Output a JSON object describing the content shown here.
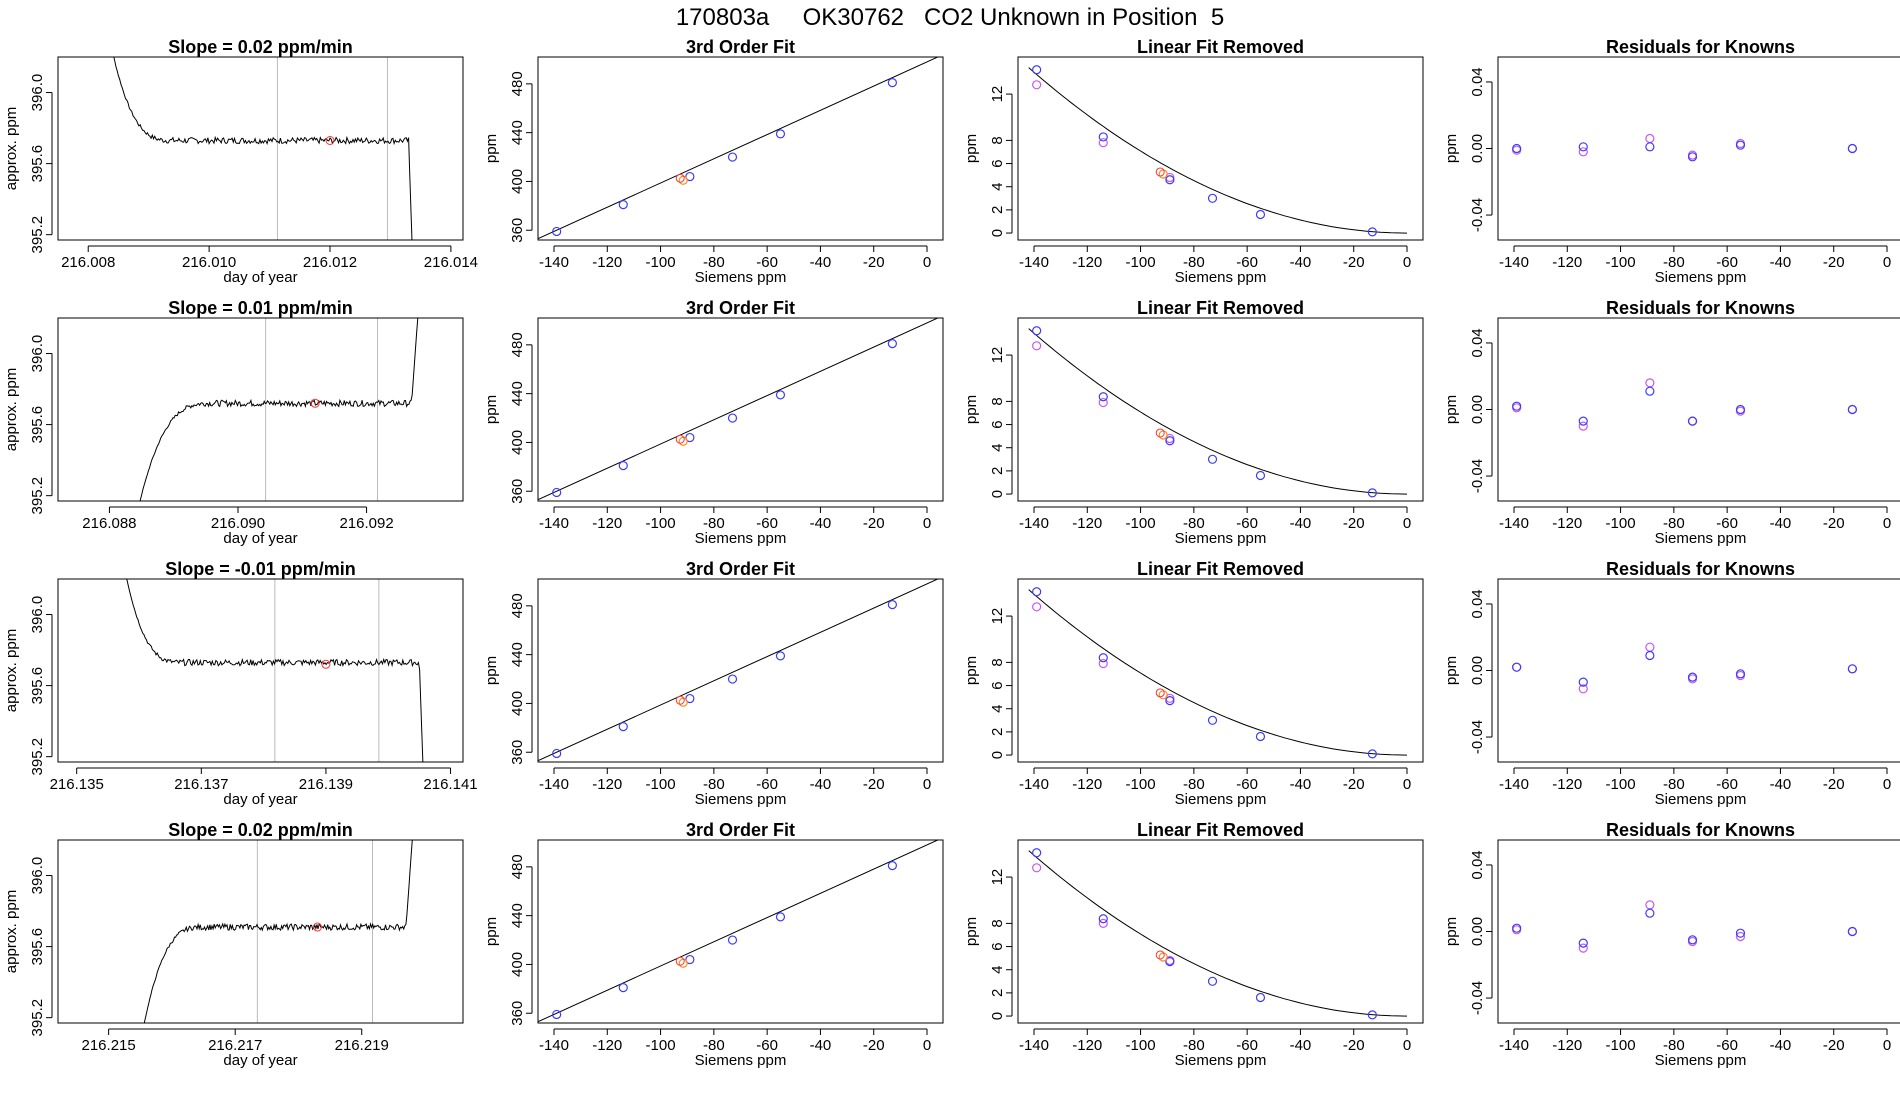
{
  "figure": {
    "title": "170803a     OK30762   CO2 Unknown in Position  5"
  },
  "colors": {
    "axis": "#000000",
    "trace": "#000000",
    "marker_red": "#ff3030",
    "marker_blue": "#3b3bff",
    "marker_violet": "#cc55ee",
    "marker_orange": "#ff8c1a",
    "vline": "#bbbbbb"
  },
  "chart_data": [
    {
      "type": "line",
      "row": 0,
      "title": "Slope =  0.02  ppm/min",
      "xlabel": "day of year",
      "ylabel": "approx. ppm",
      "xlim": [
        216.0075,
        216.0142
      ],
      "ylim": [
        395.17,
        396.2
      ],
      "xticks": [
        "216.008",
        "216.010",
        "216.012",
        "216.014"
      ],
      "yticks": [
        "395.2",
        "395.6",
        "396.0"
      ],
      "shape": "fall",
      "x_start": 216.0082,
      "x_plateau": 216.0094,
      "x_end": 216.0133,
      "x_drop_end": 216.0134,
      "level": 395.73,
      "vlines": [
        216.01113,
        216.01295
      ],
      "marker": [
        216.012,
        395.73
      ]
    },
    {
      "type": "scatter",
      "row": 0,
      "title": "3rd Order Fit",
      "xlabel": "Siemens ppm",
      "ylabel": "ppm",
      "xlim": [
        -146,
        6
      ],
      "ylim": [
        352,
        502
      ],
      "xticks": [
        "-140",
        "-120",
        "-100",
        "-80",
        "-60",
        "-40",
        "-20",
        "0"
      ],
      "yticks": [
        "360",
        "400",
        "440",
        "480"
      ],
      "curve": [
        [
          -140,
          359
        ],
        [
          0,
          498
        ]
      ],
      "knowns": [
        [
          -139,
          359
        ],
        [
          -114,
          381
        ],
        [
          -89,
          404
        ],
        [
          -73,
          420
        ],
        [
          -55,
          439
        ],
        [
          -13,
          481
        ]
      ],
      "unknown": [
        [
          -91.5,
          401
        ]
      ]
    },
    {
      "type": "scatter",
      "row": 0,
      "title": "Linear Fit Removed",
      "xlabel": "Siemens ppm",
      "ylabel": "ppm",
      "xlim": [
        -146,
        6
      ],
      "ylim": [
        -0.6,
        15.2
      ],
      "xticks": [
        "-140",
        "-120",
        "-100",
        "-80",
        "-60",
        "-40",
        "-20",
        "0"
      ],
      "yticks": [
        "0",
        "2",
        "4",
        "6",
        "8",
        "12"
      ],
      "curve_poly": {
        "x0": 0,
        "a": 0.00071,
        "b": 0.0002
      },
      "knowns": [
        [
          -139,
          14.1
        ],
        [
          -114,
          8.3
        ],
        [
          -89,
          4.6
        ],
        [
          -73,
          3.0
        ],
        [
          -55,
          1.6
        ],
        [
          -13,
          0.1
        ]
      ],
      "knowns_alt": [
        [
          -139,
          12.8
        ],
        [
          -114,
          7.8
        ],
        [
          -89,
          4.8
        ]
      ],
      "unknown": [
        [
          -91.5,
          5.1
        ]
      ]
    },
    {
      "type": "scatter",
      "row": 0,
      "title": "Residuals for Knowns",
      "xlabel": "Siemens ppm",
      "ylabel": "ppm",
      "xlim": [
        -146,
        6
      ],
      "ylim": [
        -0.055,
        0.055
      ],
      "xticks": [
        "-140",
        "-120",
        "-100",
        "-80",
        "-60",
        "-40",
        "-20",
        "0"
      ],
      "yticks": [
        "-0.04",
        "0.00",
        "0.04"
      ],
      "knowns": [
        [
          -139,
          0.0
        ],
        [
          -114,
          0.001
        ],
        [
          -89,
          0.001
        ],
        [
          -73,
          -0.005
        ],
        [
          -55,
          0.002
        ],
        [
          -13,
          0.0
        ]
      ],
      "knowns_alt": [
        [
          -139,
          -0.001
        ],
        [
          -114,
          -0.002
        ],
        [
          -89,
          0.006
        ],
        [
          -73,
          -0.004
        ],
        [
          -55,
          0.003
        ],
        [
          -13,
          0.0
        ]
      ]
    },
    {
      "type": "line",
      "row": 1,
      "title": "Slope =  0.01  ppm/min",
      "xlabel": "day of year",
      "ylabel": "approx. ppm",
      "xlim": [
        216.0872,
        216.0935
      ],
      "ylim": [
        395.17,
        396.2
      ],
      "xticks": [
        "216.088",
        "216.090",
        "216.092"
      ],
      "yticks": [
        "395.2",
        "395.6",
        "396.0"
      ],
      "shape": "rise",
      "x_start": 216.0884,
      "x_plateau": 216.0896,
      "x_end": 216.0927,
      "x_drop_end": 216.0929,
      "level": 395.72,
      "vlines": [
        216.09043,
        216.09217
      ],
      "marker": [
        216.0912,
        395.72
      ]
    },
    {
      "type": "scatter",
      "row": 1,
      "title": "3rd Order Fit",
      "xlabel": "Siemens ppm",
      "ylabel": "ppm",
      "xlim": [
        -146,
        6
      ],
      "ylim": [
        352,
        502
      ],
      "xticks": [
        "-140",
        "-120",
        "-100",
        "-80",
        "-60",
        "-40",
        "-20",
        "0"
      ],
      "yticks": [
        "360",
        "400",
        "440",
        "480"
      ],
      "curve": [
        [
          -140,
          359
        ],
        [
          0,
          498
        ]
      ],
      "knowns": [
        [
          -139,
          359
        ],
        [
          -114,
          381
        ],
        [
          -89,
          404
        ],
        [
          -73,
          420
        ],
        [
          -55,
          439
        ],
        [
          -13,
          481
        ]
      ],
      "unknown": [
        [
          -91.5,
          401
        ]
      ]
    },
    {
      "type": "scatter",
      "row": 1,
      "title": "Linear Fit Removed",
      "xlabel": "Siemens ppm",
      "ylabel": "ppm",
      "xlim": [
        -146,
        6
      ],
      "ylim": [
        -0.6,
        15.2
      ],
      "xticks": [
        "-140",
        "-120",
        "-100",
        "-80",
        "-60",
        "-40",
        "-20",
        "0"
      ],
      "yticks": [
        "0",
        "2",
        "4",
        "6",
        "8",
        "12"
      ],
      "curve_poly": {
        "x0": 0,
        "a": 0.00071,
        "b": 0.0002
      },
      "knowns": [
        [
          -139,
          14.1
        ],
        [
          -114,
          8.4
        ],
        [
          -89,
          4.6
        ],
        [
          -73,
          3.0
        ],
        [
          -55,
          1.6
        ],
        [
          -13,
          0.1
        ]
      ],
      "knowns_alt": [
        [
          -139,
          12.8
        ],
        [
          -114,
          7.9
        ],
        [
          -89,
          4.8
        ]
      ],
      "unknown": [
        [
          -91.5,
          5.1
        ]
      ]
    },
    {
      "type": "scatter",
      "row": 1,
      "title": "Residuals for Knowns",
      "xlabel": "Siemens ppm",
      "ylabel": "ppm",
      "xlim": [
        -146,
        6
      ],
      "ylim": [
        -0.055,
        0.055
      ],
      "xticks": [
        "-140",
        "-120",
        "-100",
        "-80",
        "-60",
        "-40",
        "-20",
        "0"
      ],
      "yticks": [
        "-0.04",
        "0.00",
        "0.04"
      ],
      "knowns": [
        [
          -139,
          0.002
        ],
        [
          -114,
          -0.007
        ],
        [
          -89,
          0.011
        ],
        [
          -73,
          -0.007
        ],
        [
          -55,
          0.0
        ],
        [
          -13,
          0.0
        ]
      ],
      "knowns_alt": [
        [
          -139,
          0.001
        ],
        [
          -114,
          -0.01
        ],
        [
          -89,
          0.016
        ],
        [
          -73,
          -0.007
        ],
        [
          -55,
          -0.001
        ],
        [
          -13,
          0.0
        ]
      ]
    },
    {
      "type": "line",
      "row": 2,
      "title": "Slope =  -0.01  ppm/min",
      "xlabel": "day of year",
      "ylabel": "approx. ppm",
      "xlim": [
        216.1347,
        216.1412
      ],
      "ylim": [
        395.17,
        396.2
      ],
      "xticks": [
        "216.135",
        "216.137",
        "216.139",
        "216.141"
      ],
      "yticks": [
        "395.2",
        "395.6",
        "396.0"
      ],
      "shape": "fall",
      "x_start": 216.1356,
      "x_plateau": 216.1367,
      "x_end": 216.1405,
      "x_drop_end": 216.1406,
      "level": 395.73,
      "vlines": [
        216.13818,
        216.13985
      ],
      "marker": [
        216.139,
        395.72
      ]
    },
    {
      "type": "scatter",
      "row": 2,
      "title": "3rd Order Fit",
      "xlabel": "Siemens ppm",
      "ylabel": "ppm",
      "xlim": [
        -146,
        6
      ],
      "ylim": [
        352,
        502
      ],
      "xticks": [
        "-140",
        "-120",
        "-100",
        "-80",
        "-60",
        "-40",
        "-20",
        "0"
      ],
      "yticks": [
        "360",
        "400",
        "440",
        "480"
      ],
      "curve": [
        [
          -140,
          359
        ],
        [
          0,
          498
        ]
      ],
      "knowns": [
        [
          -139,
          359
        ],
        [
          -114,
          381
        ],
        [
          -89,
          404
        ],
        [
          -73,
          420
        ],
        [
          -55,
          439
        ],
        [
          -13,
          481
        ]
      ],
      "unknown": [
        [
          -91.5,
          401
        ]
      ]
    },
    {
      "type": "scatter",
      "row": 2,
      "title": "Linear Fit Removed",
      "xlabel": "Siemens ppm",
      "ylabel": "ppm",
      "xlim": [
        -146,
        6
      ],
      "ylim": [
        -0.6,
        15.2
      ],
      "xticks": [
        "-140",
        "-120",
        "-100",
        "-80",
        "-60",
        "-40",
        "-20",
        "0"
      ],
      "yticks": [
        "0",
        "2",
        "4",
        "6",
        "8",
        "12"
      ],
      "curve_poly": {
        "x0": 0,
        "a": 0.00071,
        "b": 0.0002
      },
      "knowns": [
        [
          -139,
          14.1
        ],
        [
          -114,
          8.4
        ],
        [
          -89,
          4.7
        ],
        [
          -73,
          3.0
        ],
        [
          -55,
          1.6
        ],
        [
          -13,
          0.1
        ]
      ],
      "knowns_alt": [
        [
          -139,
          12.8
        ],
        [
          -114,
          7.9
        ],
        [
          -89,
          4.9
        ]
      ],
      "unknown": [
        [
          -91.5,
          5.2
        ]
      ]
    },
    {
      "type": "scatter",
      "row": 2,
      "title": "Residuals for Knowns",
      "xlabel": "Siemens ppm",
      "ylabel": "ppm",
      "xlim": [
        -146,
        6
      ],
      "ylim": [
        -0.055,
        0.055
      ],
      "xticks": [
        "-140",
        "-120",
        "-100",
        "-80",
        "-60",
        "-40",
        "-20",
        "0"
      ],
      "yticks": [
        "-0.04",
        "0.00",
        "0.04"
      ],
      "knowns": [
        [
          -139,
          0.002
        ],
        [
          -114,
          -0.007
        ],
        [
          -89,
          0.009
        ],
        [
          -73,
          -0.004
        ],
        [
          -55,
          -0.002
        ],
        [
          -13,
          0.001
        ]
      ],
      "knowns_alt": [
        [
          -139,
          0.002
        ],
        [
          -114,
          -0.011
        ],
        [
          -89,
          0.014
        ],
        [
          -73,
          -0.005
        ],
        [
          -55,
          -0.003
        ],
        [
          -13,
          0.001
        ]
      ]
    },
    {
      "type": "line",
      "row": 3,
      "title": "Slope =  0.02  ppm/min",
      "xlabel": "day of year",
      "ylabel": "approx. ppm",
      "xlim": [
        216.2142,
        216.2206
      ],
      "ylim": [
        395.17,
        396.2
      ],
      "xticks": [
        "216.215",
        "216.217",
        "216.219"
      ],
      "yticks": [
        "395.2",
        "395.6",
        "396.0"
      ],
      "shape": "rise",
      "x_start": 216.2155,
      "x_plateau": 216.2165,
      "x_end": 216.2197,
      "x_drop_end": 216.2199,
      "level": 395.71,
      "vlines": [
        216.21735,
        216.21917
      ],
      "marker": [
        216.2183,
        395.71
      ]
    },
    {
      "type": "scatter",
      "row": 3,
      "title": "3rd Order Fit",
      "xlabel": "Siemens ppm",
      "ylabel": "ppm",
      "xlim": [
        -146,
        6
      ],
      "ylim": [
        352,
        502
      ],
      "xticks": [
        "-140",
        "-120",
        "-100",
        "-80",
        "-60",
        "-40",
        "-20",
        "0"
      ],
      "yticks": [
        "360",
        "400",
        "440",
        "480"
      ],
      "curve": [
        [
          -140,
          359
        ],
        [
          0,
          498
        ]
      ],
      "knowns": [
        [
          -139,
          359
        ],
        [
          -114,
          381
        ],
        [
          -89,
          404
        ],
        [
          -73,
          420
        ],
        [
          -55,
          439
        ],
        [
          -13,
          481
        ]
      ],
      "unknown": [
        [
          -91.5,
          401
        ]
      ]
    },
    {
      "type": "scatter",
      "row": 3,
      "title": "Linear Fit Removed",
      "xlabel": "Siemens ppm",
      "ylabel": "ppm",
      "xlim": [
        -146,
        6
      ],
      "ylim": [
        -0.6,
        15.2
      ],
      "xticks": [
        "-140",
        "-120",
        "-100",
        "-80",
        "-60",
        "-40",
        "-20",
        "0"
      ],
      "yticks": [
        "0",
        "2",
        "4",
        "6",
        "8",
        "12"
      ],
      "curve_poly": {
        "x0": 0,
        "a": 0.00071,
        "b": 0.0002
      },
      "knowns": [
        [
          -139,
          14.1
        ],
        [
          -114,
          8.4
        ],
        [
          -89,
          4.7
        ],
        [
          -73,
          3.0
        ],
        [
          -55,
          1.6
        ],
        [
          -13,
          0.1
        ]
      ],
      "knowns_alt": [
        [
          -139,
          12.8
        ],
        [
          -114,
          8.0
        ],
        [
          -89,
          4.8
        ]
      ],
      "unknown": [
        [
          -91.5,
          5.1
        ]
      ]
    },
    {
      "type": "scatter",
      "row": 3,
      "title": "Residuals for Knowns",
      "xlabel": "Siemens ppm",
      "ylabel": "ppm",
      "xlim": [
        -146,
        6
      ],
      "ylim": [
        -0.055,
        0.055
      ],
      "xticks": [
        "-140",
        "-120",
        "-100",
        "-80",
        "-60",
        "-40",
        "-20",
        "0"
      ],
      "yticks": [
        "-0.04",
        "0.00",
        "0.04"
      ],
      "knowns": [
        [
          -139,
          0.002
        ],
        [
          -114,
          -0.007
        ],
        [
          -89,
          0.011
        ],
        [
          -73,
          -0.005
        ],
        [
          -55,
          -0.001
        ],
        [
          -13,
          0.0
        ]
      ],
      "knowns_alt": [
        [
          -139,
          0.001
        ],
        [
          -114,
          -0.01
        ],
        [
          -89,
          0.016
        ],
        [
          -73,
          -0.006
        ],
        [
          -55,
          -0.003
        ],
        [
          -13,
          0.0
        ]
      ]
    }
  ]
}
